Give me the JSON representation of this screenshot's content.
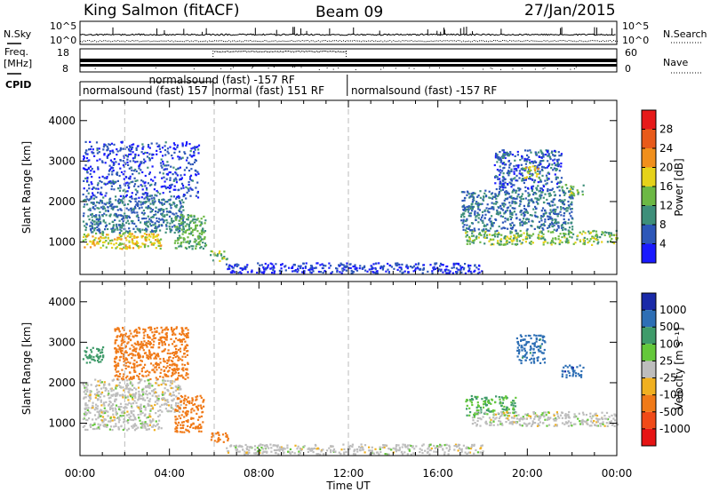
{
  "header": {
    "station": "King Salmon (fitACF)",
    "beam": "Beam 09",
    "date": "27/Jan/2015"
  },
  "status_panels": {
    "nsky_label": "N.Sky",
    "nsearch_label": "N.Search",
    "freq_label": "Freq.",
    "freq_unit": "[MHz]",
    "nave_label": "Nave",
    "cpid_label": "CPID",
    "noise_ticks_left": [
      "10^5",
      "10^0"
    ],
    "noise_ticks_right": [
      "10^5",
      "10^0"
    ],
    "freq_ticks": [
      "18",
      "8"
    ],
    "nave_ticks": [
      "60",
      "0"
    ],
    "cpid_segments": [
      {
        "label": "normalsound (fast) -157 RF",
        "level": "upper",
        "start_h": 3.0
      },
      {
        "label": "normalsound (fast) 157",
        "level": "lower",
        "start_h": 0.0,
        "end_h": 6.0
      },
      {
        "label": "normal (fast) 151 RF",
        "level": "lower",
        "start_h": 5.9,
        "end_h": 12.0
      },
      {
        "label": "normalsound (fast) -157 RF",
        "level": "lower",
        "start_h": 12.0,
        "end_h": 24.0
      }
    ]
  },
  "axes": {
    "ylabel": "Slant Range [km]",
    "xlabel": "Time UT",
    "y_ticks": [
      1000,
      2000,
      3000,
      4000
    ],
    "x_tick_labels": [
      "00:00",
      "04:00",
      "08:00",
      "12:00",
      "16:00",
      "20:00",
      "00:00"
    ]
  },
  "power_scale": {
    "label": "Power [dB]",
    "ticks": [
      "4",
      "8",
      "12",
      "16",
      "20",
      "24",
      "28"
    ],
    "colors": [
      "#1a1aff",
      "#2d57b8",
      "#3e8f7a",
      "#6cb844",
      "#e6d21a",
      "#f08f1c",
      "#e85a1a",
      "#e61a1a"
    ]
  },
  "velocity_scale": {
    "label": "Velocity [m s⁻¹]",
    "ticks": [
      "1000",
      "500",
      "100",
      "25",
      "-25",
      "-100",
      "-500",
      "-1000"
    ],
    "colors": [
      "#1a2aa8",
      "#2e6fb5",
      "#3f9b6a",
      "#64c83a",
      "#bdbdbd",
      "#f0b020",
      "#f07a18",
      "#f04a18",
      "#e61414"
    ]
  },
  "chart_data": [
    {
      "type": "heatmap",
      "title": "Power",
      "x": "time_hours",
      "y": "slant_range_km",
      "xlim": [
        0,
        24
      ],
      "ylim": [
        200,
        4500
      ],
      "regions": [
        {
          "t": [
            0.1,
            3.6
          ],
          "r": [
            850,
            1250
          ],
          "value_db": 18
        },
        {
          "t": [
            0.1,
            4.6
          ],
          "r": [
            1250,
            2100
          ],
          "value_db": 8
        },
        {
          "t": [
            0.1,
            5.3
          ],
          "r": [
            2100,
            3500
          ],
          "value_db": 5
        },
        {
          "t": [
            4.2,
            5.6
          ],
          "r": [
            850,
            1700
          ],
          "value_db": 12
        },
        {
          "t": [
            5.8,
            6.6
          ],
          "r": [
            550,
            800
          ],
          "value_db": 14
        },
        {
          "t": [
            6.5,
            18.0
          ],
          "r": [
            250,
            500
          ],
          "value_db": 4
        },
        {
          "t": [
            17.2,
            24.0
          ],
          "r": [
            950,
            1300
          ],
          "value_db": 14
        },
        {
          "t": [
            17.0,
            22.0
          ],
          "r": [
            1300,
            2300
          ],
          "value_db": 8
        },
        {
          "t": [
            18.5,
            21.5
          ],
          "r": [
            2300,
            3300
          ],
          "value_db": 6
        },
        {
          "t": [
            19.8,
            20.5
          ],
          "r": [
            2600,
            2900
          ],
          "value_db": 18
        },
        {
          "t": [
            21.5,
            22.5
          ],
          "r": [
            2150,
            2450
          ],
          "value_db": 14
        }
      ]
    },
    {
      "type": "heatmap",
      "title": "Velocity",
      "x": "time_hours",
      "y": "slant_range_km",
      "xlim": [
        0,
        24
      ],
      "ylim": [
        200,
        4500
      ],
      "regions": [
        {
          "t": [
            0.1,
            3.6
          ],
          "r": [
            850,
            1300
          ],
          "value_ms": 0
        },
        {
          "t": [
            0.1,
            4.5
          ],
          "r": [
            1300,
            2100
          ],
          "value_ms": 0
        },
        {
          "t": [
            0.1,
            1.0
          ],
          "r": [
            2500,
            2900
          ],
          "value_ms": 300
        },
        {
          "t": [
            1.5,
            4.8
          ],
          "r": [
            2100,
            3400
          ],
          "value_ms": -150
        },
        {
          "t": [
            4.2,
            5.5
          ],
          "r": [
            800,
            1700
          ],
          "value_ms": -300
        },
        {
          "t": [
            5.8,
            6.6
          ],
          "r": [
            550,
            800
          ],
          "value_ms": -200
        },
        {
          "t": [
            6.5,
            18.0
          ],
          "r": [
            250,
            500
          ],
          "value_ms": 0
        },
        {
          "t": [
            17.2,
            19.5
          ],
          "r": [
            1200,
            1700
          ],
          "value_ms": 100
        },
        {
          "t": [
            17.5,
            24.0
          ],
          "r": [
            950,
            1300
          ],
          "value_ms": 0
        },
        {
          "t": [
            19.5,
            20.8
          ],
          "r": [
            2500,
            3200
          ],
          "value_ms": 700
        },
        {
          "t": [
            21.5,
            22.5
          ],
          "r": [
            2150,
            2450
          ],
          "value_ms": 800
        }
      ]
    }
  ]
}
